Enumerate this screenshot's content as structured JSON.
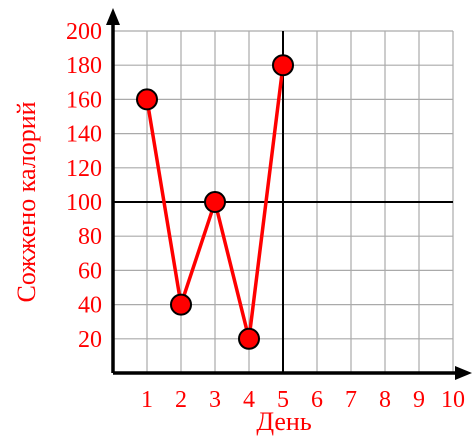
{
  "chart_data": {
    "type": "line",
    "xlabel": "День",
    "ylabel": "Сожжено калорий",
    "x": [
      1,
      2,
      3,
      4,
      5
    ],
    "series": [
      {
        "values": [
          160,
          40,
          100,
          20,
          180
        ]
      }
    ],
    "xlim": [
      0,
      10
    ],
    "ylim": [
      0,
      200
    ],
    "xticks": [
      "1",
      "2",
      "3",
      "4",
      "5",
      "6",
      "7",
      "8",
      "9",
      "10"
    ],
    "yticks": [
      "20",
      "40",
      "60",
      "80",
      "100",
      "120",
      "140",
      "160",
      "180",
      "200"
    ],
    "grid": true,
    "reference_lines": {
      "x": 5,
      "y": 100
    },
    "colors": {
      "series": "#ff0000",
      "labels": "#ff0000",
      "axes": "#000000",
      "grid": "#aaaaaa"
    }
  }
}
